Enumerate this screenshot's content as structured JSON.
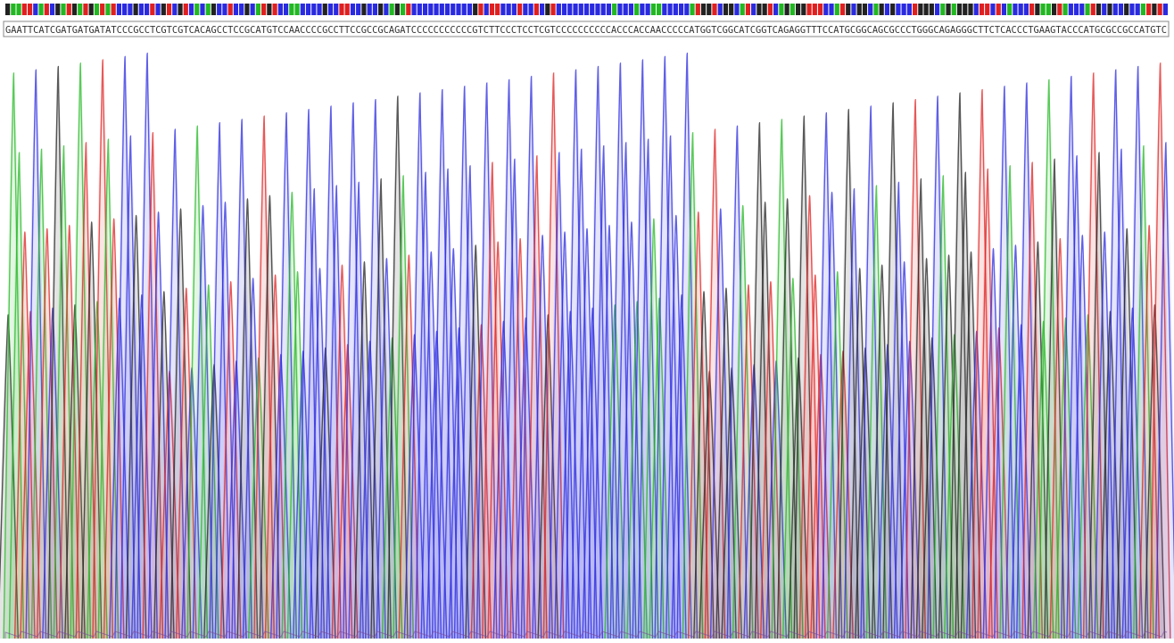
{
  "sequence": "GAATTCATCGATGATGATATCCCGCCTCGTCGTCACAGCCTCCGCATGTCCAACCCCGCCTTCCGCCGCAGATCCCCCCCCCCCGTCTTCCCTCCTCGTCCCCCCCCCCACCCACCAACCCCCATGGTCGGCATCGGTCAGAGGTTTCCATGCGGCAGCGCCCTGGGCAGAGGGCTTCTCACCCTGAAGTACCCATGCGCCGCCATGTC"
}
